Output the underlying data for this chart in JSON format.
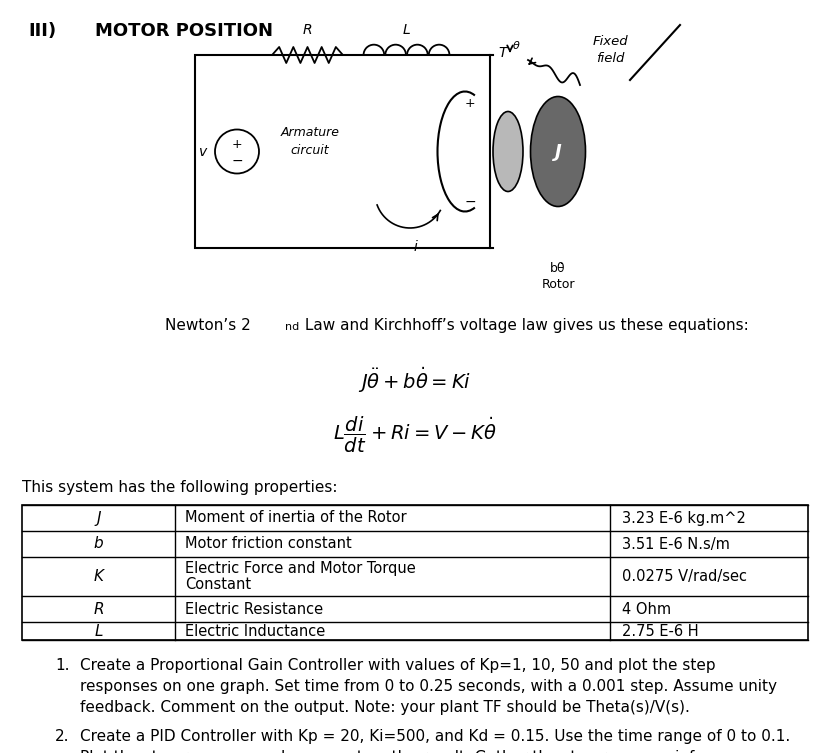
{
  "background_color": "#ffffff",
  "title_num": "III)",
  "title_text": "Motor Position",
  "newton_text": "Newton’s 2",
  "newton_sup": "nd",
  "newton_rest": " Law and Kirchhoff’s voltage law gives us these equations:",
  "system_text": "This system has the following properties:",
  "symbols": [
    "J",
    "b",
    "K",
    "R",
    "L"
  ],
  "descriptions": [
    "Moment of inertia of the Rotor",
    "Motor friction constant",
    "Electric Force and Motor Torque\nConstant",
    "Electric Resistance",
    "Electric Inductance"
  ],
  "values": [
    "3.23 E-6 kg.m^2",
    "3.51 E-6 N.s/m",
    "0.0275 V/rad/sec",
    "4 Ohm",
    "2.75 E-6 H"
  ],
  "item1_lines": [
    "Create a Proportional Gain Controller with values of Kp=1, 10, 50 and plot the step",
    "responses on one graph. Set time from 0 to 0.25 seconds, with a 0.001 step. Assume unity",
    "feedback. Comment on the output. Note: your plant TF should be Theta(s)/V(s)."
  ],
  "item2_lines": [
    "Create a PID Controller with Kp = 20, Ki=500, and Kd = 0.15. Use the time range of 0 to 0.1.",
    "Plot the step response and comment on the result. Gather the step response info."
  ]
}
